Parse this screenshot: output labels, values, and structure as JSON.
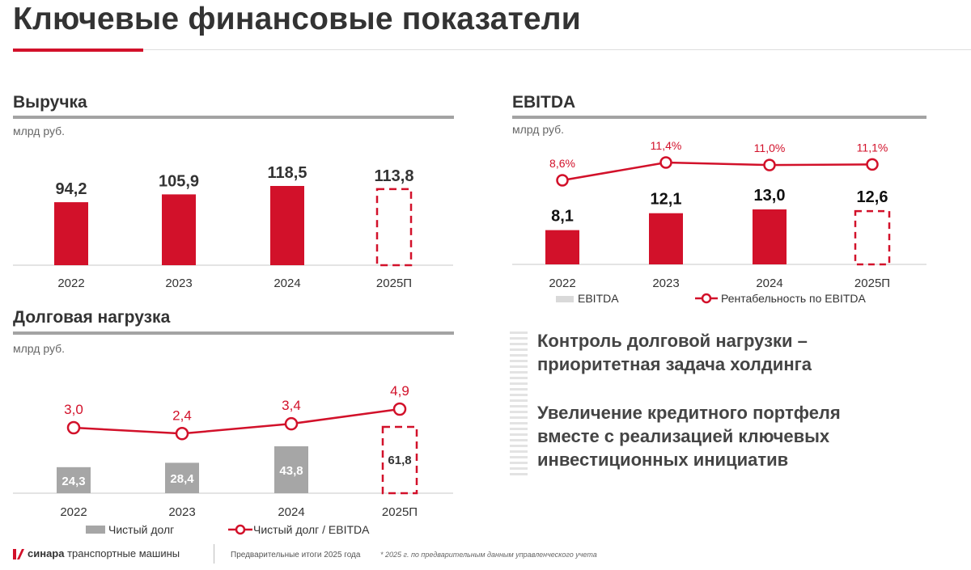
{
  "header": {
    "title": "Ключевые финансовые показатели"
  },
  "colors": {
    "red": "#d2112a",
    "grey_bar": "#a6a6a6",
    "legend_grey": "#d9d9d9",
    "axis": "#c8c8c8"
  },
  "sections": {
    "revenue": {
      "title": "Выручка",
      "unit": "млрд руб."
    },
    "ebitda": {
      "title": "EBITDA",
      "unit": "млрд руб."
    },
    "debt": {
      "title": "Долговая нагрузка",
      "unit": "млрд руб."
    }
  },
  "side": {
    "headline_line1": "Контроль долговой нагрузки –",
    "headline_line2": "приоритетная задача холдинга",
    "body_line1": "Увеличение кредитного портфеля",
    "body_line2": "вместе с реализацией ключевых",
    "body_line3": "инвестиционных инициатив"
  },
  "footer": {
    "brand_bold": "синара",
    "brand_rest": " транспортные машины",
    "note": "Предварительные итоги 2025 года",
    "footnote": "* 2025 г. по предварительным данным управленческого учета"
  },
  "chart_data": [
    {
      "id": "revenue",
      "type": "bar",
      "categories": [
        "2022",
        "2023",
        "2024",
        "2025П"
      ],
      "values": [
        94.2,
        105.9,
        118.5,
        113.8
      ],
      "value_labels": [
        "94,2",
        "105,9",
        "118,5",
        "113,8"
      ],
      "forecast": [
        false,
        false,
        false,
        true
      ],
      "title": "Выручка",
      "ylabel": "млрд руб.",
      "ylim": [
        0,
        135
      ]
    },
    {
      "id": "ebitda",
      "type": "bar",
      "categories": [
        "2022",
        "2023",
        "2024",
        "2025П"
      ],
      "series": [
        {
          "name": "EBITDA",
          "type": "bar",
          "values": [
            8.1,
            12.1,
            13.0,
            12.6
          ],
          "labels": [
            "8,1",
            "12,1",
            "13,0",
            "12,6"
          ],
          "forecast": [
            false,
            false,
            false,
            true
          ]
        },
        {
          "name": "Рентабельность по EBITDA",
          "type": "line",
          "values": [
            8.6,
            11.4,
            11.0,
            11.1
          ],
          "labels": [
            "8,6%",
            "11,4%",
            "11,0%",
            "11,1%"
          ]
        }
      ],
      "title": "EBITDA",
      "ylabel": "млрд руб.",
      "ylim": [
        0,
        22
      ],
      "legend": "bottom"
    },
    {
      "id": "debt",
      "type": "bar",
      "categories": [
        "2022",
        "2023",
        "2024",
        "2025П"
      ],
      "series": [
        {
          "name": "Чистый долг",
          "type": "bar",
          "values": [
            24.3,
            28.4,
            43.8,
            61.8
          ],
          "labels": [
            "24,3",
            "28,4",
            "43,8",
            "61,8"
          ],
          "forecast": [
            false,
            false,
            false,
            true
          ]
        },
        {
          "name": "Чистый долг / EBITDA",
          "type": "line",
          "values": [
            3.0,
            2.4,
            3.4,
            4.9
          ],
          "labels": [
            "3,0",
            "2,4",
            "3,4",
            "4,9"
          ]
        }
      ],
      "title": "Долговая нагрузка",
      "ylabel": "млрд руб.",
      "ylim": [
        0,
        90
      ],
      "legend": "bottom"
    }
  ]
}
